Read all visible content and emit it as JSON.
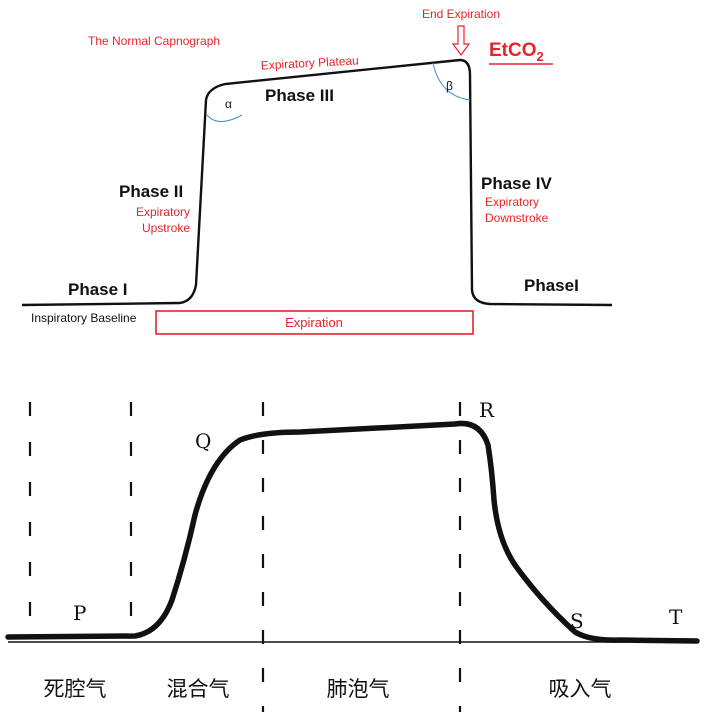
{
  "top_diagram": {
    "title": "The Normal Capnograph",
    "end_expiration": "End Expiration",
    "etco2_main": "EtCO",
    "etco2_sub": "2",
    "plateau_label": "Expiratory  Plateau",
    "phase3": "Phase III",
    "alpha": "α",
    "beta": "β",
    "phase2": "Phase II",
    "upstroke_1": "Expiratory",
    "upstroke_2": "Upstroke",
    "phase4": "Phase IV",
    "downstroke_1": "Expiratory",
    "downstroke_2": "Downstroke",
    "phase1_left": "Phase I",
    "phase1_right": "PhaseI",
    "baseline": "Inspiratory Baseline",
    "expiration": "Expiration",
    "colors": {
      "accent": "#e8242a",
      "arc": "#4a8fd0",
      "line": "#111111"
    }
  },
  "bottom_diagram": {
    "points": {
      "p": "P",
      "q": "Q",
      "r": "R",
      "s": "S",
      "t": "T"
    },
    "segments": [
      "死腔气",
      "混合气",
      "肺泡气",
      "吸入气"
    ]
  }
}
